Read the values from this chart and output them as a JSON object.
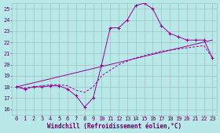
{
  "xlabel": "Windchill (Refroidissement éolien,°C)",
  "line_color": "#990099",
  "bg_color": "#b8e8e8",
  "grid_color": "#9ab8b8",
  "xlim": [
    -0.5,
    23.5
  ],
  "ylim": [
    15.5,
    25.5
  ],
  "yticks": [
    16,
    17,
    18,
    19,
    20,
    21,
    22,
    23,
    24,
    25
  ],
  "xticks": [
    0,
    1,
    2,
    3,
    4,
    5,
    6,
    7,
    8,
    9,
    10,
    11,
    12,
    13,
    14,
    15,
    16,
    17,
    18,
    19,
    20,
    21,
    22,
    23
  ],
  "line1_x": [
    0,
    1,
    2,
    3,
    4,
    5,
    6,
    7,
    8,
    9,
    10,
    11,
    12,
    13,
    14,
    15,
    16,
    17,
    18,
    19,
    20,
    21,
    22,
    23
  ],
  "line1_y": [
    18.0,
    17.8,
    18.0,
    18.0,
    18.1,
    18.1,
    17.8,
    17.2,
    16.2,
    17.0,
    20.0,
    23.3,
    23.3,
    24.0,
    25.3,
    25.5,
    25.0,
    23.5,
    22.8,
    22.5,
    22.2,
    22.2,
    22.2,
    20.6
  ],
  "line2_x": [
    0,
    23
  ],
  "line2_y": [
    18.0,
    22.2
  ],
  "line3_x": [
    0,
    1,
    2,
    3,
    4,
    5,
    6,
    7,
    8,
    9,
    10,
    11,
    12,
    13,
    14,
    15,
    16,
    17,
    18,
    19,
    20,
    21,
    22,
    23
  ],
  "line3_y": [
    18.0,
    17.9,
    18.0,
    18.1,
    18.2,
    18.2,
    18.1,
    17.7,
    17.5,
    18.0,
    19.0,
    19.5,
    20.0,
    20.3,
    20.6,
    20.8,
    21.0,
    21.2,
    21.3,
    21.4,
    21.5,
    21.6,
    21.7,
    20.6
  ],
  "font_color": "#660066",
  "font_size_tick": 5,
  "font_size_label": 5.5
}
